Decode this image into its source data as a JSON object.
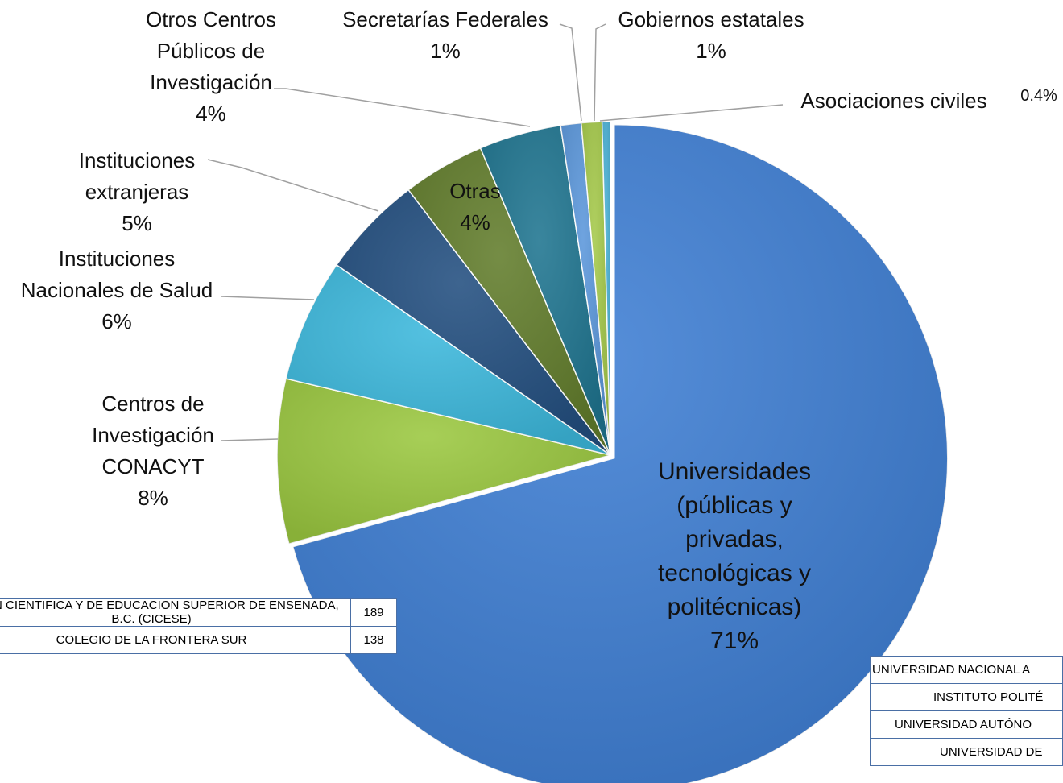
{
  "chart_data": {
    "type": "pie",
    "categories": [
      "Universidades (públicas y privadas, tecnológicas y politécnicas)",
      "Centros de Investigación CONACYT",
      "Instituciones Nacionales de Salud",
      "Instituciones extranjeras",
      "Otras",
      "Otros Centros Públicos de Investigación",
      "Secretarías Federales",
      "Gobiernos estatales",
      "Asociaciones civiles"
    ],
    "values": [
      71,
      8,
      6,
      5,
      4,
      4,
      1,
      1,
      0.4
    ],
    "value_labels": [
      "71%",
      "8%",
      "6%",
      "5%",
      "4%",
      "4%",
      "1%",
      "1%",
      "0.4%"
    ],
    "colors": [
      "#3f7fd4",
      "#9bc840",
      "#3cb8dc",
      "#234f80",
      "#627d2c",
      "#1f7590",
      "#5b97db",
      "#a5c94a",
      "#4bb2d6"
    ]
  },
  "tables": [
    {
      "rows": [
        [
          "ACIÓN CIENTIFICA Y DE EDUCACION SUPERIOR DE ENSENADA, B.C. (CICESE)",
          "189"
        ],
        [
          "COLEGIO DE LA FRONTERA SUR",
          "138"
        ]
      ]
    },
    {
      "rows": [
        [
          "UNIVERSIDAD NACIONAL A"
        ],
        [
          "INSTITUTO POLITÉ"
        ],
        [
          "UNIVERSIDAD AUTÓNO"
        ],
        [
          "UNIVERSIDAD DE"
        ]
      ]
    }
  ]
}
